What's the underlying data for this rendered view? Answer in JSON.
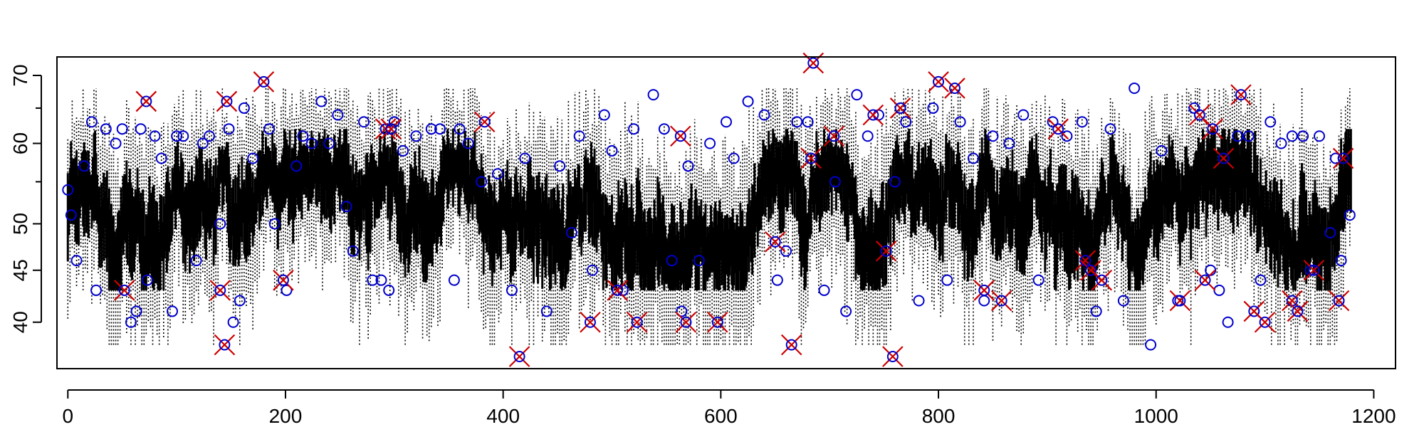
{
  "chart_data": {
    "type": "scatter",
    "title": "",
    "xlabel": "",
    "ylabel": "",
    "xlim": [
      -10,
      1220
    ],
    "ylim": [
      36,
      73
    ],
    "y_scale": "log",
    "x_ticks": [
      "0",
      "200",
      "400",
      "600",
      "800",
      "1000",
      "1200"
    ],
    "y_ticks": [
      "40",
      "45",
      "50",
      "60",
      "70"
    ],
    "y_minor_ticks": [
      55,
      65
    ],
    "n_points": 1180,
    "box_median_range": [
      45,
      60
    ],
    "whisker_range": [
      38,
      68
    ],
    "series": [
      {
        "marker": "circle",
        "color": "#0000cc",
        "points": [
          [
            0,
            54
          ],
          [
            3,
            51
          ],
          [
            8,
            46
          ],
          [
            15,
            57
          ],
          [
            22,
            63
          ],
          [
            26,
            43
          ],
          [
            35,
            62
          ],
          [
            44,
            60
          ],
          [
            50,
            62
          ],
          [
            58,
            40
          ],
          [
            63,
            41
          ],
          [
            67,
            62
          ],
          [
            73,
            44
          ],
          [
            80,
            61
          ],
          [
            86,
            58
          ],
          [
            96,
            41
          ],
          [
            100,
            61
          ],
          [
            106,
            61
          ],
          [
            118,
            46
          ],
          [
            124,
            60
          ],
          [
            130,
            61
          ],
          [
            140,
            50
          ],
          [
            148,
            62
          ],
          [
            152,
            40
          ],
          [
            158,
            42
          ],
          [
            162,
            65
          ],
          [
            170,
            58
          ],
          [
            185,
            62
          ],
          [
            190,
            50
          ],
          [
            201,
            43
          ],
          [
            210,
            57
          ],
          [
            216,
            61
          ],
          [
            224,
            60
          ],
          [
            233,
            66
          ],
          [
            240,
            60
          ],
          [
            248,
            64
          ],
          [
            256,
            52
          ],
          [
            262,
            47
          ],
          [
            272,
            63
          ],
          [
            280,
            44
          ],
          [
            288,
            44
          ],
          [
            295,
            43
          ],
          [
            300,
            63
          ],
          [
            308,
            59
          ],
          [
            320,
            61
          ],
          [
            334,
            62
          ],
          [
            342,
            62
          ],
          [
            355,
            44
          ],
          [
            360,
            62
          ],
          [
            368,
            60
          ],
          [
            380,
            55
          ],
          [
            395,
            56
          ],
          [
            408,
            43
          ],
          [
            420,
            58
          ],
          [
            440,
            41
          ],
          [
            452,
            57
          ],
          [
            463,
            49
          ],
          [
            470,
            61
          ],
          [
            482,
            45
          ],
          [
            493,
            64
          ],
          [
            500,
            59
          ],
          [
            510,
            43
          ],
          [
            520,
            62
          ],
          [
            538,
            67
          ],
          [
            548,
            62
          ],
          [
            555,
            46
          ],
          [
            564,
            41
          ],
          [
            570,
            57
          ],
          [
            580,
            46
          ],
          [
            590,
            60
          ],
          [
            605,
            63
          ],
          [
            612,
            58
          ],
          [
            625,
            66
          ],
          [
            640,
            64
          ],
          [
            652,
            44
          ],
          [
            660,
            47
          ],
          [
            670,
            63
          ],
          [
            680,
            63
          ],
          [
            695,
            43
          ],
          [
            705,
            55
          ],
          [
            715,
            41
          ],
          [
            725,
            67
          ],
          [
            735,
            61
          ],
          [
            745,
            64
          ],
          [
            760,
            55
          ],
          [
            770,
            63
          ],
          [
            782,
            42
          ],
          [
            795,
            65
          ],
          [
            808,
            44
          ],
          [
            820,
            63
          ],
          [
            832,
            58
          ],
          [
            842,
            42
          ],
          [
            850,
            61
          ],
          [
            865,
            60
          ],
          [
            878,
            64
          ],
          [
            892,
            44
          ],
          [
            905,
            63
          ],
          [
            918,
            61
          ],
          [
            932,
            63
          ],
          [
            945,
            41
          ],
          [
            958,
            62
          ],
          [
            970,
            42
          ],
          [
            980,
            68
          ],
          [
            995,
            38
          ],
          [
            1005,
            59
          ],
          [
            1020,
            42
          ],
          [
            1035,
            65
          ],
          [
            1050,
            45
          ],
          [
            1058,
            43
          ],
          [
            1066,
            40
          ],
          [
            1075,
            61
          ],
          [
            1085,
            61
          ],
          [
            1096,
            44
          ],
          [
            1105,
            63
          ],
          [
            1115,
            60
          ],
          [
            1125,
            61
          ],
          [
            1135,
            61
          ],
          [
            1142,
            45
          ],
          [
            1150,
            61
          ],
          [
            1160,
            49
          ],
          [
            1165,
            58
          ],
          [
            1170,
            46
          ],
          [
            1178,
            51
          ]
        ]
      },
      {
        "marker": "x",
        "color": "#cc0000",
        "points": [
          [
            52,
            43
          ],
          [
            72,
            66
          ],
          [
            140,
            43
          ],
          [
            144,
            38
          ],
          [
            146,
            66
          ],
          [
            180,
            69
          ],
          [
            198,
            44
          ],
          [
            292,
            62
          ],
          [
            297,
            62
          ],
          [
            383,
            63
          ],
          [
            415,
            37
          ],
          [
            480,
            40
          ],
          [
            505,
            43
          ],
          [
            523,
            40
          ],
          [
            563,
            61
          ],
          [
            568,
            40
          ],
          [
            597,
            40
          ],
          [
            650,
            48
          ],
          [
            665,
            38
          ],
          [
            683,
            58
          ],
          [
            685,
            72
          ],
          [
            704,
            61
          ],
          [
            740,
            64
          ],
          [
            752,
            47
          ],
          [
            758,
            37
          ],
          [
            765,
            65
          ],
          [
            800,
            69
          ],
          [
            815,
            68
          ],
          [
            842,
            43
          ],
          [
            858,
            42
          ],
          [
            910,
            62
          ],
          [
            935,
            46
          ],
          [
            940,
            45
          ],
          [
            950,
            44
          ],
          [
            1022,
            42
          ],
          [
            1040,
            64
          ],
          [
            1045,
            44
          ],
          [
            1052,
            62
          ],
          [
            1062,
            58
          ],
          [
            1078,
            67
          ],
          [
            1090,
            41
          ],
          [
            1100,
            40
          ],
          [
            1125,
            42
          ],
          [
            1130,
            41
          ],
          [
            1145,
            45
          ],
          [
            1168,
            42
          ],
          [
            1172,
            58
          ]
        ]
      }
    ]
  }
}
